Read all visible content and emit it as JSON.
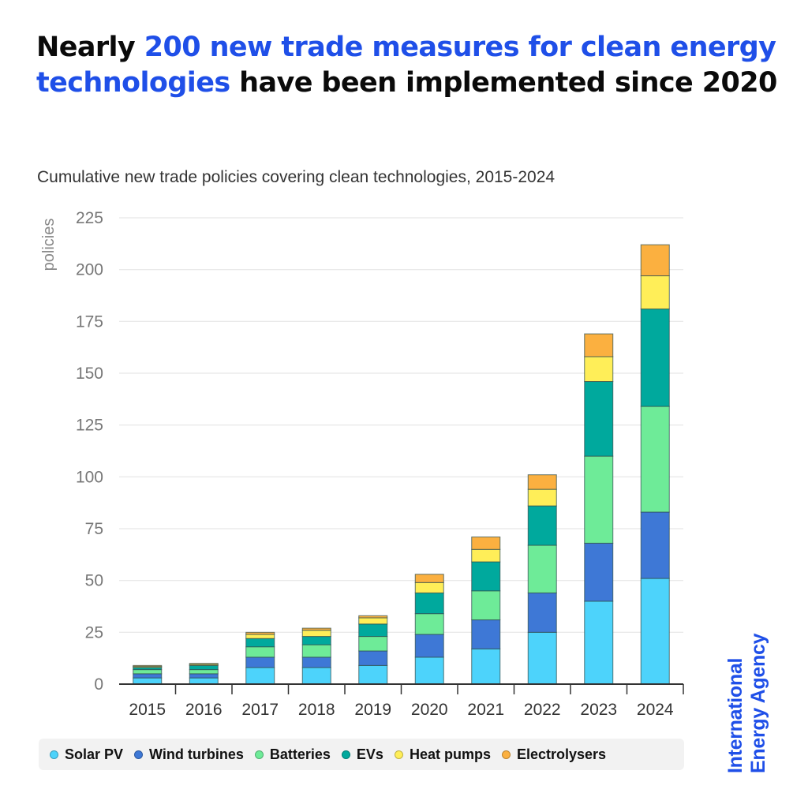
{
  "title": {
    "prefix": "Nearly ",
    "highlight": "200 new trade measures for clean energy technologies",
    "suffix": " have been implemented since 2020"
  },
  "brand": {
    "line1": "International",
    "line2": "Energy Agency"
  },
  "colors": {
    "title_highlight": "#1f4fe8",
    "Solar PV": "#4dd3fb",
    "Wind turbines": "#3e78d6",
    "Batteries": "#6eeb98",
    "EVs": "#00a99d",
    "Heat pumps": "#ffee58",
    "Electrolysers": "#fbb040"
  },
  "chart_data": {
    "type": "bar",
    "stacked": true,
    "title": "Cumulative new trade policies covering clean technologies, 2015-2024",
    "xlabel": "",
    "ylabel": "policies",
    "ylim": [
      0,
      225
    ],
    "yticks": [
      0,
      25,
      50,
      75,
      100,
      125,
      150,
      175,
      200,
      225
    ],
    "grid": true,
    "legend_position": "bottom",
    "categories": [
      "2015",
      "2016",
      "2017",
      "2018",
      "2019",
      "2020",
      "2021",
      "2022",
      "2023",
      "2024"
    ],
    "series": [
      {
        "name": "Solar PV",
        "values": [
          3,
          3,
          8,
          8,
          9,
          13,
          17,
          25,
          40,
          51
        ]
      },
      {
        "name": "Wind turbines",
        "values": [
          2,
          2,
          5,
          5,
          7,
          11,
          14,
          19,
          28,
          32
        ]
      },
      {
        "name": "Batteries",
        "values": [
          2,
          2,
          5,
          6,
          7,
          10,
          14,
          23,
          42,
          51
        ]
      },
      {
        "name": "EVs",
        "values": [
          1,
          2,
          4,
          4,
          6,
          10,
          14,
          19,
          36,
          47
        ]
      },
      {
        "name": "Heat pumps",
        "values": [
          0.5,
          0.5,
          2,
          3,
          3,
          5,
          6,
          8,
          12,
          16
        ]
      },
      {
        "name": "Electrolysers",
        "values": [
          0.5,
          0.5,
          1,
          1,
          1,
          4,
          6,
          7,
          11,
          15
        ]
      }
    ]
  }
}
